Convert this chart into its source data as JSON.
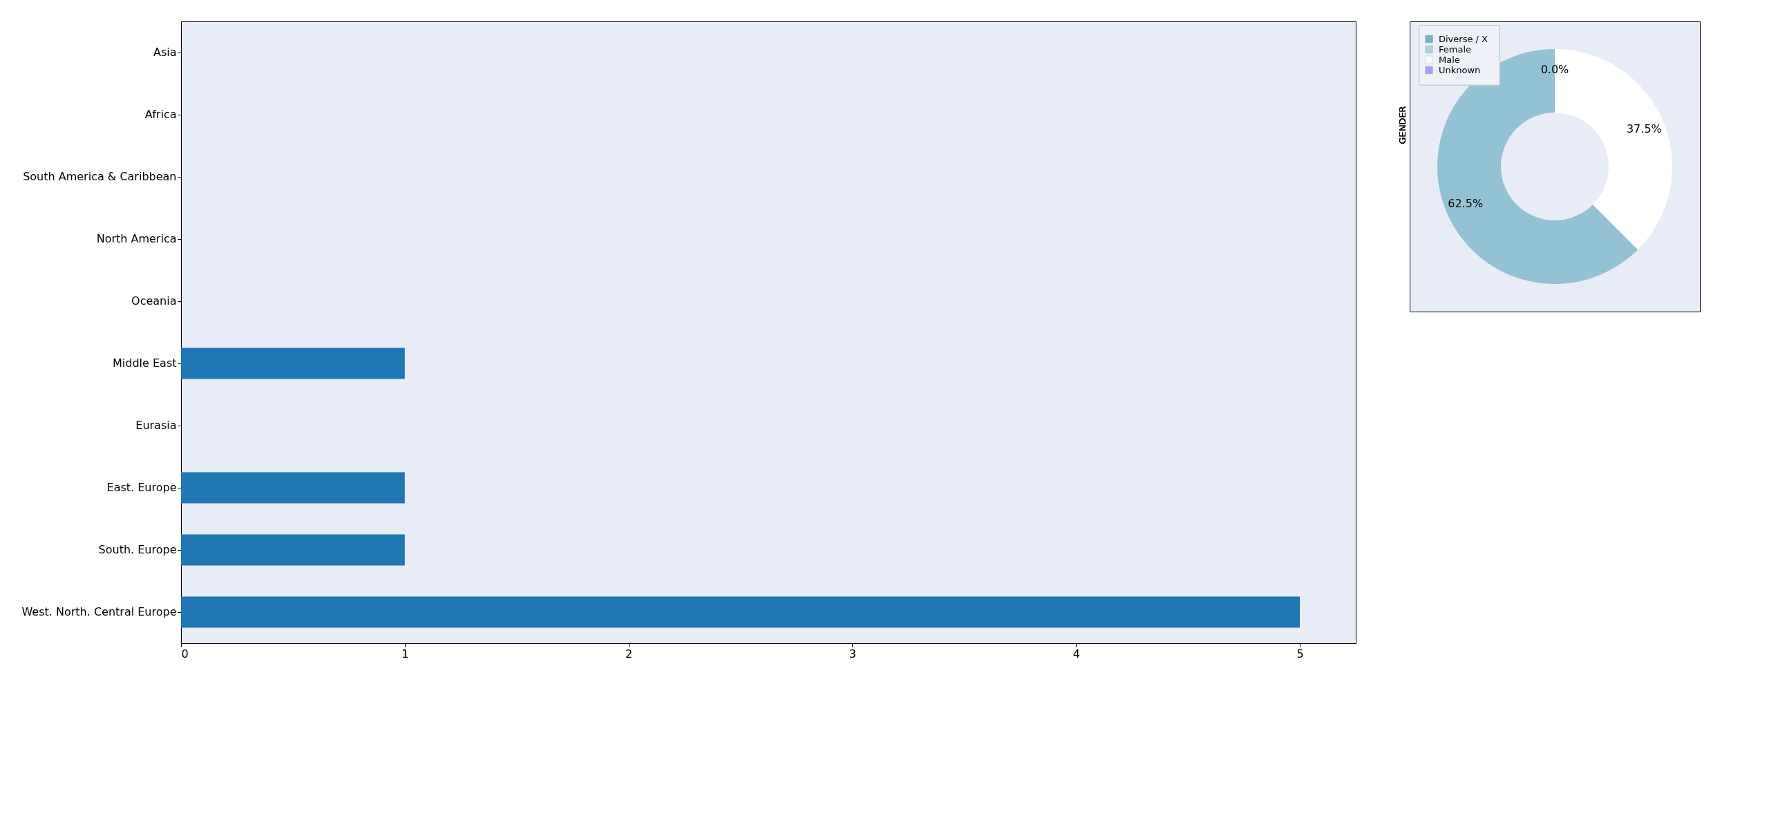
{
  "chart_data": [
    {
      "type": "bar",
      "orientation": "horizontal",
      "categories": [
        "Asia",
        "Africa",
        "South America & Caribbean",
        "North America",
        "Oceania",
        "Middle East",
        "Eurasia",
        "East. Europe",
        "South. Europe",
        "West. North. Central Europe"
      ],
      "values": [
        0,
        0,
        0,
        0,
        0,
        1,
        0,
        1,
        1,
        5
      ],
      "color": "#1f77b4",
      "xlim": [
        0,
        5.25
      ],
      "xticks": [
        0,
        1,
        2,
        3,
        4,
        5
      ],
      "grid": false,
      "legend": false
    },
    {
      "type": "donut",
      "ylabel": "GENDER",
      "categories": [
        "Diverse / X",
        "Female",
        "Male",
        "Unknown"
      ],
      "values": [
        0,
        62.5,
        37.5,
        0
      ],
      "colors": [
        "#4596b0",
        "#92c2d4",
        "#ffffff",
        "#8080ff"
      ],
      "value_labels": [
        "0.0%",
        "62.5%",
        "37.5%",
        null
      ],
      "legend": "top left"
    }
  ]
}
